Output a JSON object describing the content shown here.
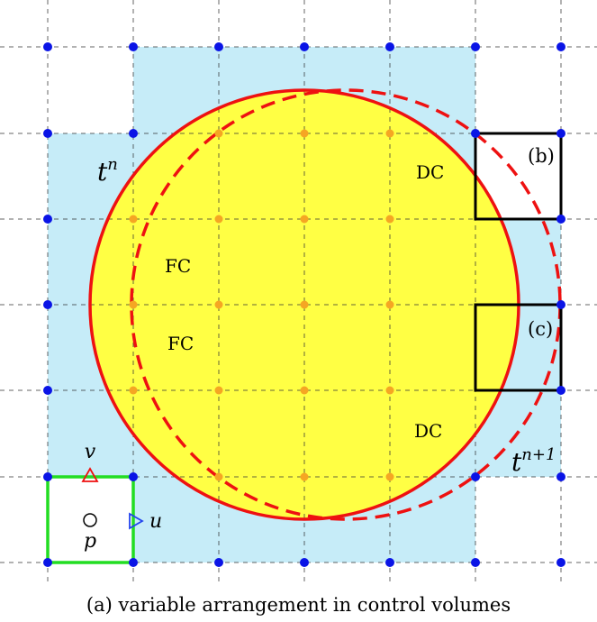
{
  "labels": {
    "t_n_base": "t",
    "t_n_sup": "n",
    "t_n1_base": "t",
    "t_n1_sup": "n+1",
    "fc_top": "FC",
    "fc_bottom": "FC",
    "dc_top": "DC",
    "dc_bottom": "DC",
    "b": "(b)",
    "c": "(c)",
    "v": "v",
    "u": "u",
    "p": "p"
  },
  "caption": "(a) variable arrangement in control volumes",
  "colors": {
    "fluid_cells": "#c6ecf8",
    "solid_interior": "#ffff44",
    "dead_cells": "#eeee44",
    "interface_current": "#ee1111",
    "interface_next": "#ee1111",
    "fluid_nodes": "#0a14e6",
    "solid_nodes": "#f5a623",
    "control_volume_a": "#22dd22",
    "control_volumes_bc": "#000000"
  }
}
